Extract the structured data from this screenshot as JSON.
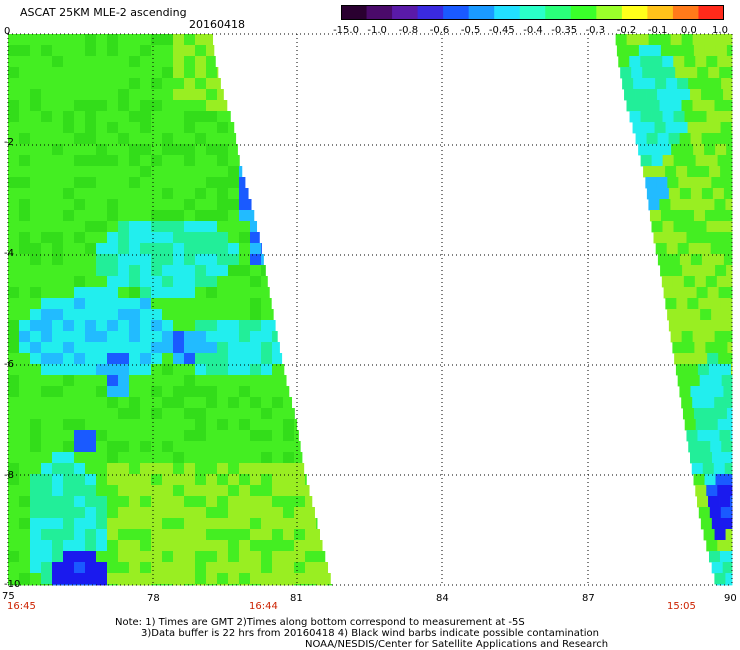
{
  "header": {
    "title": "ASCAT 25KM MLE-2 ascending",
    "date": "20160418"
  },
  "colorbar": {
    "labels": [
      "-15.0",
      "-1.0",
      "-0.8",
      "-0.6",
      "-0.5",
      "-0.45",
      "-0.4",
      "-0.35",
      "-0.3",
      "-0.2",
      "-0.1",
      "0.0",
      "1.0"
    ],
    "colors": [
      "#2a0030",
      "#4a0a6a",
      "#5a1aa8",
      "#3a2ae0",
      "#1a5aff",
      "#1a9aff",
      "#22e0ff",
      "#2affc8",
      "#2aff7a",
      "#3aff2a",
      "#9aff2a",
      "#ffff1a",
      "#ffc21a",
      "#ff7a1a",
      "#ff2a1a"
    ]
  },
  "axes": {
    "y_ticks": [
      "0",
      "-2",
      "-4",
      "-6",
      "-8",
      "-10"
    ],
    "x_ticks": [
      "75",
      "78",
      "81",
      "84",
      "87",
      "90"
    ],
    "y_range": [
      0,
      -10
    ],
    "x_range": [
      75,
      90
    ],
    "grid": true
  },
  "times": {
    "t1": "16:45",
    "t2": "16:44",
    "t3": "15:05"
  },
  "notes": {
    "line1": "Note: 1) Times are GMT 2)Times along bottom correspond to measurement at -5S",
    "line2": "3)Data buffer is 22 hrs from 20160418 4) Black wind barbs indicate possible contamination",
    "line3": "NOAA/NESDIS/Center for Satellite Applications and Research"
  },
  "map_colors": {
    "green": "#44ee22",
    "green_dark": "#33dd1a",
    "yellow_green": "#99ee22",
    "cyan": "#22eeee",
    "cyan_green": "#22ee99",
    "light_blue": "#22bbff",
    "blue": "#1a5aff",
    "deep_blue": "#1a1aee"
  }
}
